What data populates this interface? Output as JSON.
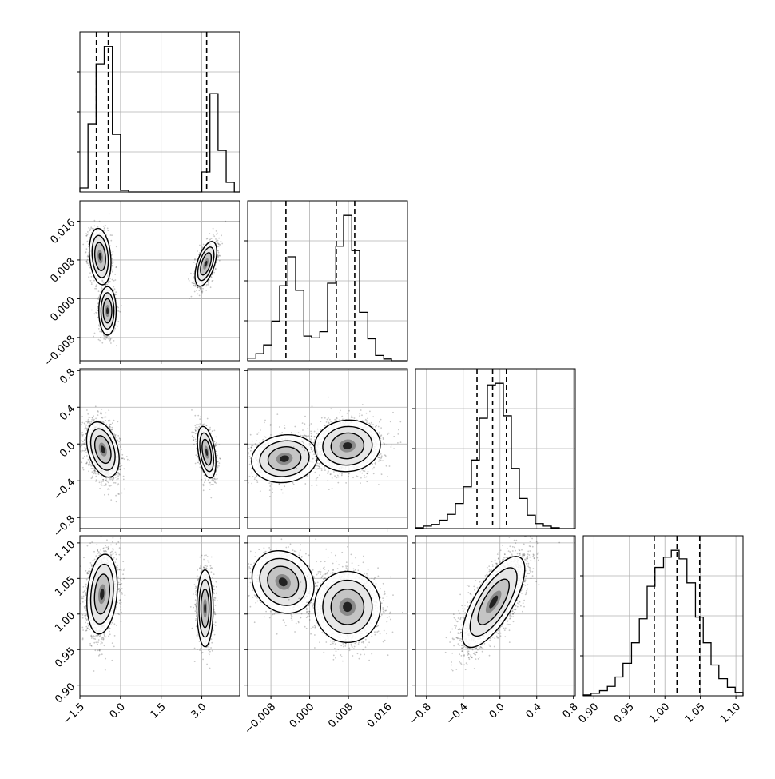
{
  "chart_data": {
    "type": "corner",
    "colors": {
      "line": "#000000",
      "grid": "#b0b0b0",
      "background": "#ffffff",
      "points": "#000000"
    },
    "grid": true,
    "parameters": [
      {
        "ticks": [
          -1.5,
          0.0,
          1.5,
          3.0
        ],
        "tick_labels": [
          "−1.5",
          "0.0",
          "1.5",
          "3.0"
        ],
        "range": [
          -1.5,
          4.4
        ],
        "quantiles": [
          -0.89,
          -0.45,
          3.18
        ],
        "hist": {
          "edges": [
            -1.5,
            -1.2,
            -0.9,
            -0.6,
            -0.3,
            0.0,
            0.3,
            0.6,
            0.9,
            1.2,
            1.5,
            1.8,
            2.1,
            2.4,
            2.7,
            3.0,
            3.3,
            3.6,
            3.9,
            4.2,
            4.4
          ],
          "counts": [
            5,
            85,
            160,
            182,
            72,
            2,
            0,
            0,
            0,
            0,
            0,
            0,
            0,
            0,
            0,
            25,
            123,
            52,
            12,
            0
          ]
        }
      },
      {
        "ticks": [
          -0.008,
          0.0,
          0.008,
          0.016
        ],
        "tick_labels": [
          "−0.008",
          "0.000",
          "0.008",
          "0.016"
        ],
        "range": [
          -0.0128,
          0.0202
        ],
        "quantiles": [
          -0.0049,
          0.0055,
          0.0093
        ],
        "hist": {
          "edges": [
            -0.0128,
            -0.0111,
            -0.0095,
            -0.0078,
            -0.0062,
            -0.0045,
            -0.0029,
            -0.0012,
            0.0004,
            0.0021,
            0.0037,
            0.0054,
            0.007,
            0.0087,
            0.0103,
            0.012,
            0.0136,
            0.0153,
            0.0169,
            0.0186,
            0.0202
          ],
          "counts": [
            3,
            8,
            18,
            45,
            85,
            118,
            80,
            28,
            26,
            33,
            88,
            130,
            165,
            125,
            55,
            25,
            6,
            2,
            0,
            0
          ]
        }
      },
      {
        "ticks": [
          -0.8,
          -0.4,
          0.0,
          0.4,
          0.8
        ],
        "tick_labels": [
          "−0.8",
          "−0.4",
          "0.0",
          "0.4",
          "0.8"
        ],
        "range": [
          -0.92,
          0.82
        ],
        "quantiles": [
          -0.25,
          -0.08,
          0.07
        ],
        "hist": {
          "edges": [
            -0.92,
            -0.833,
            -0.746,
            -0.659,
            -0.572,
            -0.485,
            -0.398,
            -0.311,
            -0.224,
            -0.137,
            -0.05,
            0.037,
            0.124,
            0.211,
            0.298,
            0.385,
            0.472,
            0.559,
            0.646,
            0.733,
            0.82
          ],
          "counts": [
            1,
            3,
            5,
            10,
            17,
            30,
            50,
            82,
            132,
            172,
            174,
            135,
            72,
            36,
            16,
            6,
            3,
            1,
            0,
            0
          ]
        }
      },
      {
        "ticks": [
          0.9,
          0.95,
          1.0,
          1.05,
          1.1
        ],
        "tick_labels": [
          "0.90",
          "0.95",
          "1.00",
          "1.05",
          "1.10"
        ],
        "range": [
          0.885,
          1.11
        ],
        "quantiles": [
          0.985,
          1.017,
          1.049
        ],
        "hist": {
          "edges": [
            0.885,
            0.896,
            0.908,
            0.919,
            0.93,
            0.941,
            0.953,
            0.964,
            0.975,
            0.986,
            0.998,
            1.009,
            1.02,
            1.031,
            1.043,
            1.054,
            1.065,
            1.076,
            1.088,
            1.099,
            1.11
          ],
          "counts": [
            1,
            3,
            6,
            11,
            22,
            38,
            62,
            90,
            128,
            150,
            162,
            170,
            160,
            132,
            92,
            62,
            36,
            20,
            10,
            4
          ]
        }
      }
    ],
    "pairs": [
      {
        "row": 1,
        "col": 0,
        "clusters": [
          {
            "cx": -0.75,
            "cy": 0.0087,
            "sx": 0.2,
            "sy": 0.0029,
            "rho": -0.2,
            "n": 1000
          },
          {
            "cx": -0.48,
            "cy": -0.0025,
            "sx": 0.16,
            "sy": 0.0025,
            "rho": 0.0,
            "n": 800
          },
          {
            "cx": 3.15,
            "cy": 0.0072,
            "sx": 0.2,
            "sy": 0.0023,
            "rho": 0.55,
            "n": 1000
          }
        ]
      },
      {
        "row": 2,
        "col": 0,
        "clusters": [
          {
            "cx": -0.65,
            "cy": -0.06,
            "sx": 0.3,
            "sy": 0.15,
            "rho": -0.35,
            "n": 1900
          },
          {
            "cx": 3.18,
            "cy": -0.09,
            "sx": 0.17,
            "sy": 0.14,
            "rho": -0.4,
            "n": 1000
          }
        ]
      },
      {
        "row": 2,
        "col": 1,
        "clusters": [
          {
            "cx": -0.0052,
            "cy": -0.16,
            "sx": 0.0034,
            "sy": 0.13,
            "rho": 0.1,
            "n": 1100
          },
          {
            "cx": 0.0078,
            "cy": -0.02,
            "sx": 0.0034,
            "sy": 0.14,
            "rho": 0.05,
            "n": 1800
          }
        ]
      },
      {
        "row": 3,
        "col": 0,
        "clusters": [
          {
            "cx": -0.68,
            "cy": 1.028,
            "sx": 0.28,
            "sy": 0.028,
            "rho": 0.2,
            "n": 1900
          },
          {
            "cx": 3.12,
            "cy": 1.008,
            "sx": 0.15,
            "sy": 0.027,
            "rho": 0.0,
            "n": 1000
          }
        ]
      },
      {
        "row": 3,
        "col": 1,
        "clusters": [
          {
            "cx": -0.0055,
            "cy": 1.045,
            "sx": 0.0032,
            "sy": 0.022,
            "rho": -0.15,
            "n": 1000
          },
          {
            "cx": 0.0078,
            "cy": 1.01,
            "sx": 0.0034,
            "sy": 0.025,
            "rho": 0.0,
            "n": 1800
          }
        ]
      },
      {
        "row": 3,
        "col": 2,
        "clusters": [
          {
            "cx": -0.07,
            "cy": 1.017,
            "sx": 0.17,
            "sy": 0.032,
            "rho": 0.72,
            "n": 2900
          }
        ]
      }
    ]
  }
}
